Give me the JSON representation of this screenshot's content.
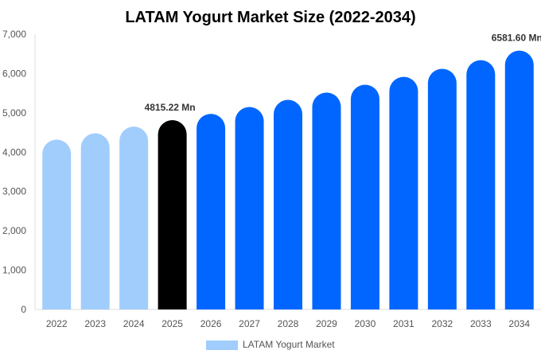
{
  "chart_data": {
    "type": "bar",
    "title": "LATAM Yogurt Market Size (2022-2034)",
    "xlabel": "",
    "ylabel": "",
    "ylim": [
      0,
      7000
    ],
    "yticks": [
      "0",
      "1,000",
      "2,000",
      "3,000",
      "4,000",
      "5,000",
      "6,000",
      "7,000"
    ],
    "categories": [
      "2022",
      "2023",
      "2024",
      "2025",
      "2026",
      "2027",
      "2028",
      "2029",
      "2030",
      "2031",
      "2032",
      "2033",
      "2034"
    ],
    "series": [
      {
        "name": "LATAM Yogurt Market",
        "values": [
          4320,
          4480,
          4650,
          4815.22,
          4975,
          5150,
          5330,
          5515,
          5715,
          5915,
          6120,
          6340,
          6581.6
        ]
      }
    ],
    "data_labels": [
      {
        "category": "2025",
        "text": "4815.22 Mn"
      },
      {
        "category": "2034",
        "text": "6581.60 Mn"
      }
    ],
    "bar_colors": {
      "history": "#a0cdfc",
      "current": "#000000",
      "forecast": "#0066ff"
    },
    "legend": {
      "position": "bottom",
      "label": "LATAM Yogurt Market",
      "color": "#a0cdfc"
    },
    "grid": false
  }
}
